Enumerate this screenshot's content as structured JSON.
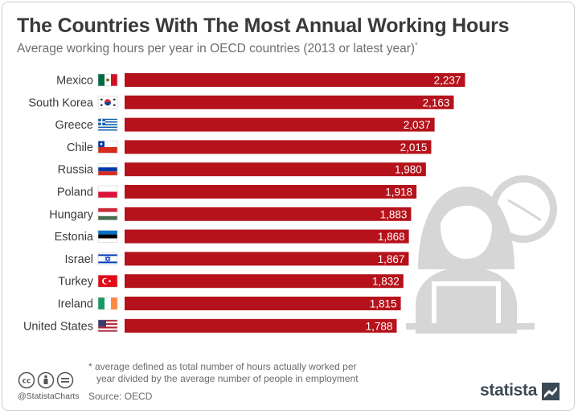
{
  "header": {
    "title": "The Countries With The Most Annual Working Hours",
    "subtitle": "Average working hours per year in OECD countries (2013 or latest year)",
    "subtitle_mark": "*"
  },
  "chart_data": {
    "type": "bar",
    "orientation": "horizontal",
    "categories": [
      "Mexico",
      "South Korea",
      "Greece",
      "Chile",
      "Russia",
      "Poland",
      "Hungary",
      "Estonia",
      "Israel",
      "Turkey",
      "Ireland",
      "United States"
    ],
    "values": [
      2237,
      2163,
      2037,
      2015,
      1980,
      1918,
      1883,
      1868,
      1867,
      1832,
      1815,
      1788
    ],
    "value_labels": [
      "2,237",
      "2,163",
      "2,037",
      "2,015",
      "1,980",
      "1,918",
      "1,883",
      "1,868",
      "1,867",
      "1,832",
      "1,815",
      "1,788"
    ],
    "bar_color": "#b5121b",
    "label_color": "#ffffff",
    "grid": false,
    "legend": "none",
    "flags": [
      "mexico-flag-icon",
      "south-korea-flag-icon",
      "greece-flag-icon",
      "chile-flag-icon",
      "russia-flag-icon",
      "poland-flag-icon",
      "hungary-flag-icon",
      "estonia-flag-icon",
      "israel-flag-icon",
      "turkey-flag-icon",
      "ireland-flag-icon",
      "united-states-flag-icon"
    ]
  },
  "footer": {
    "note_line1": "* average defined as total number of hours actually worked per",
    "note_line2": "year divided by the average number of people in employment",
    "source": "Source: OECD",
    "handle": "@StatistaCharts",
    "brand": "statista",
    "license_icons": [
      "creative-commons-icon",
      "attribution-icon",
      "no-derivatives-icon"
    ]
  },
  "illustration": {
    "icons": [
      "clock-icon",
      "person-at-laptop-icon"
    ],
    "fill_color": "#d6d6d6"
  }
}
